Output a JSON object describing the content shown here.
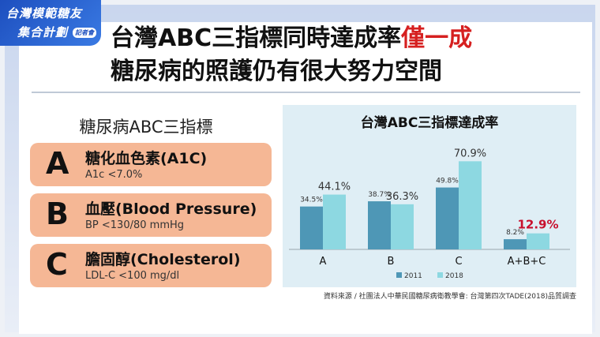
{
  "logo": {
    "line1": "台灣模範糖友",
    "line2": "集合計劃",
    "tag": "記者會"
  },
  "headline": {
    "line1_prefix": "台灣ABC三指標同時達成率",
    "line1_highlight": "僅一成",
    "line2": "糖尿病的照護仍有很大努力空間"
  },
  "indicators": {
    "title": "糖尿病ABC三指標",
    "items": [
      {
        "letter": "A",
        "name": "糖化血色素(A1C)",
        "target": "A1c <7.0%"
      },
      {
        "letter": "B",
        "name": "血壓(Blood Pressure)",
        "target": "BP <130/80 mmHg"
      },
      {
        "letter": "C",
        "name": "膽固醇(Cholesterol)",
        "target": "LDL-C <100 mg/dl"
      }
    ]
  },
  "colors": {
    "series_2011": "#4e97b6",
    "series_2018": "#8dd8e1",
    "card": "#f5b795",
    "highlight": "#c8102e"
  },
  "chart_data": {
    "type": "bar",
    "title": "台灣ABC三指標達成率",
    "categories": [
      "A",
      "B",
      "C",
      "A+B+C"
    ],
    "series": [
      {
        "name": "2011",
        "values": [
          34.5,
          38.7,
          49.8,
          8.2
        ],
        "labels": [
          "34.5%",
          "38.7%",
          "49.8%",
          "8.2%"
        ]
      },
      {
        "name": "2018",
        "values": [
          44.1,
          36.3,
          70.9,
          12.9
        ],
        "labels": [
          "44.1%",
          "36.3%",
          "70.9%",
          "12.9%"
        ]
      }
    ],
    "ylim": [
      0,
      100
    ],
    "legend": "bottom",
    "grid": false
  },
  "source": "資料來源 / 社團法人中華民國糖尿病衛教學會:  台灣第四次TADE(2018)品質調查"
}
